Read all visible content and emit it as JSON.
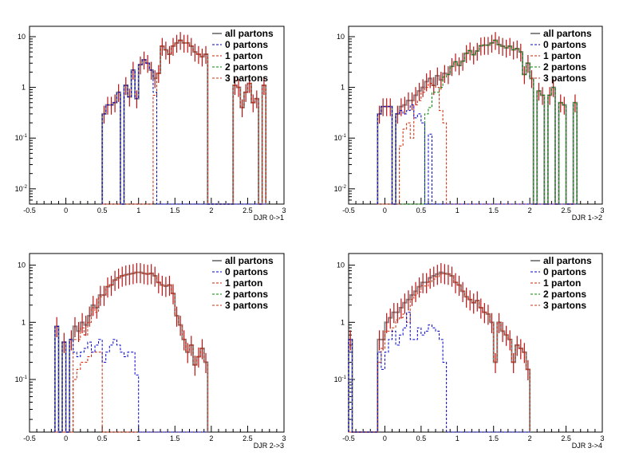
{
  "chart_data": [
    {
      "type": "histogram",
      "xlabel": "DJR 0->1",
      "ylabel": "",
      "xlim": [
        -0.5,
        3
      ],
      "ylim": [
        0.005,
        16
      ],
      "log_y": true,
      "x_ticks": [
        "-0.5",
        "0",
        "0.5",
        "1",
        "1.5",
        "2",
        "2.5",
        "3"
      ],
      "y_ticks": [
        {
          "v": 10,
          "b": "10",
          "e": ""
        },
        {
          "v": 1,
          "b": "1",
          "e": ""
        },
        {
          "v": 0.1,
          "b": "10",
          "e": "-1"
        },
        {
          "v": 0.01,
          "b": "10",
          "e": "-2"
        }
      ],
      "legend": [
        "all partons",
        "0 partons",
        "1 parton",
        "2 partons",
        "3 partons"
      ],
      "bins": {
        "start": 0.5,
        "width": 0.05
      },
      "series": [
        {
          "name": "all partons",
          "values": [
            0.3,
            0.45,
            0.45,
            0.5,
            0.8,
            0.005,
            1.1,
            0.65,
            2.2,
            0.6,
            2.8,
            3.5,
            3.0,
            2.2,
            1.5,
            1.9,
            6.5,
            5.5,
            4.5,
            6.5,
            7.5,
            8.5,
            7.5,
            7.5,
            6.5,
            5.0,
            4.5,
            4.0,
            4.5,
            0.005,
            0.005,
            0.005,
            0.005,
            0.005,
            0.005,
            0.005,
            1.1,
            1.0,
            0.4,
            0.8,
            1.2,
            0.5,
            0.6,
            0.005,
            1.1
          ]
        },
        {
          "name": "0 partons",
          "values": [
            0.3,
            0.45,
            0.45,
            0.5,
            0.8,
            0.005,
            1.1,
            0.65,
            2.2,
            0.6,
            2.8,
            3.5,
            3.0,
            2.2,
            0.8,
            0.005,
            0.005,
            0.005,
            0.005,
            0.005,
            0.005,
            0.005,
            0.005,
            0.005,
            0.005,
            0.005,
            0.005,
            0.005,
            0.005,
            0.005,
            0.005,
            0.005,
            0.005,
            0.005,
            0.005,
            0.005,
            0.005,
            0.005,
            0.005,
            0.005,
            0.005,
            0.005,
            0.005,
            0.005,
            0.005
          ]
        },
        {
          "name": "1 parton",
          "values": [
            0.005,
            0.005,
            0.005,
            0.005,
            0.005,
            0.005,
            0.005,
            0.005,
            0.005,
            0.005,
            0.005,
            0.005,
            0.005,
            0.005,
            0.7,
            1.9,
            6.5,
            5.5,
            4.5,
            6.5,
            7.5,
            8.5,
            7.5,
            7.5,
            6.5,
            5.0,
            4.5,
            4.0,
            4.5,
            0.005,
            0.005,
            0.005,
            0.005,
            0.005,
            0.005,
            0.005,
            1.1,
            1.0,
            0.4,
            0.8,
            1.2,
            0.5,
            0.6,
            0.005,
            1.1
          ]
        },
        {
          "name": "2 partons",
          "values": []
        },
        {
          "name": "3 partons",
          "values": []
        }
      ]
    },
    {
      "type": "histogram",
      "xlabel": "DJR 1->2",
      "ylabel": "",
      "xlim": [
        -0.5,
        3
      ],
      "ylim": [
        0.005,
        16
      ],
      "log_y": true,
      "x_ticks": [
        "-0.5",
        "0",
        "0.5",
        "1",
        "1.5",
        "2",
        "2.5",
        "3"
      ],
      "y_ticks": [
        {
          "v": 10,
          "b": "10",
          "e": ""
        },
        {
          "v": 1,
          "b": "1",
          "e": ""
        },
        {
          "v": 0.1,
          "b": "10",
          "e": "-1"
        },
        {
          "v": 0.01,
          "b": "10",
          "e": "-2"
        }
      ],
      "legend": [
        "all partons",
        "0 partons",
        "1 parton",
        "2 partons",
        "3 partons"
      ],
      "bins": {
        "start": -0.1,
        "width": 0.05
      },
      "series": [
        {
          "name": "all partons",
          "values": [
            0.3,
            0.42,
            0.42,
            0.42,
            0.005,
            0.3,
            0.42,
            0.45,
            0.55,
            0.55,
            0.7,
            0.85,
            1.0,
            1.3,
            1.5,
            1.1,
            1.7,
            1.4,
            1.9,
            1.8,
            2.6,
            3.2,
            2.7,
            3.3,
            4.7,
            5.3,
            4.4,
            5.2,
            6.6,
            6.8,
            6.8,
            7.5,
            8.5,
            7.0,
            6.5,
            6.0,
            6.5,
            5.5,
            5.8,
            5.0,
            1.8,
            3.0,
            1.5,
            0.005,
            0.85,
            0.7,
            0.005,
            0.7,
            1.0,
            0.005,
            0.5,
            0.45,
            0.005,
            0.005,
            0.5
          ]
        },
        {
          "name": "0 partons",
          "values": [
            0.3,
            0.42,
            0.42,
            0.42,
            0.005,
            0.3,
            0.35,
            0.3,
            0.35,
            0.45,
            0.25,
            0.3,
            0.2,
            0.005,
            0.12,
            0.005,
            0.005,
            0.005,
            0.005,
            0.005,
            0.005,
            0.005,
            0.005,
            0.005,
            0.005,
            0.005,
            0.005,
            0.005,
            0.005,
            0.005,
            0.005,
            0.005,
            0.005,
            0.005,
            0.005,
            0.005,
            0.005,
            0.005,
            0.005,
            0.005,
            0.005,
            0.005,
            0.005,
            0.005,
            0.005,
            0.005,
            0.005,
            0.005,
            0.005,
            0.005,
            0.005,
            0.005,
            0.005,
            0.005,
            0.005
          ]
        },
        {
          "name": "1 parton",
          "values": [
            0.005,
            0.005,
            0.005,
            0.005,
            0.005,
            0.005,
            0.07,
            0.15,
            0.2,
            0.1,
            0.45,
            0.55,
            0.8,
            1.0,
            1.2,
            1.1,
            1.0,
            0.35,
            0.2,
            0.005,
            0.005,
            0.005,
            0.005,
            0.005,
            0.005,
            0.005,
            0.005,
            0.005,
            0.005,
            0.005,
            0.005,
            0.005,
            0.005,
            0.005,
            0.005,
            0.005,
            0.005,
            0.005,
            0.005,
            0.005,
            0.005,
            0.005,
            0.005,
            0.005,
            0.005,
            0.005,
            0.005,
            0.005,
            0.005,
            0.005,
            0.005,
            0.005,
            0.005,
            0.005,
            0.005
          ]
        },
        {
          "name": "2 partons",
          "values": [
            0.005,
            0.005,
            0.005,
            0.005,
            0.005,
            0.005,
            0.005,
            0.005,
            0.005,
            0.005,
            0.005,
            0.005,
            0.005,
            0.3,
            0.4,
            0.8,
            0.8,
            1.0,
            1.6,
            1.8,
            2.6,
            3.2,
            2.7,
            3.3,
            4.7,
            5.3,
            4.4,
            5.2,
            6.6,
            6.8,
            6.8,
            7.5,
            8.5,
            7.0,
            6.5,
            6.0,
            6.5,
            5.5,
            5.8,
            5.0,
            1.8,
            3.0,
            1.5,
            0.005,
            0.85,
            0.7,
            0.005,
            0.7,
            1.0,
            0.005,
            0.5,
            0.45,
            0.005,
            0.005,
            0.5
          ]
        },
        {
          "name": "3 partons",
          "values": []
        }
      ]
    },
    {
      "type": "histogram",
      "xlabel": "DJR 2->3",
      "ylabel": "",
      "xlim": [
        -0.5,
        3
      ],
      "ylim": [
        0.012,
        16
      ],
      "log_y": true,
      "x_ticks": [
        "-0.5",
        "0",
        "0.5",
        "1",
        "1.5",
        "2",
        "2.5",
        "3"
      ],
      "y_ticks": [
        {
          "v": 10,
          "b": "10",
          "e": ""
        },
        {
          "v": 1,
          "b": "1",
          "e": ""
        },
        {
          "v": 0.1,
          "b": "10",
          "e": "-1"
        }
      ],
      "legend": [
        "all partons",
        "0 partons",
        "1 parton",
        "2 partons",
        "3 partons"
      ],
      "bins": {
        "start": -0.15,
        "width": 0.05
      },
      "series": [
        {
          "name": "all partons",
          "values": [
            0.85,
            0.012,
            0.45,
            0.012,
            0.5,
            0.85,
            0.7,
            1.0,
            0.9,
            1.3,
            2.0,
            1.8,
            3.0,
            3.0,
            4.2,
            4.5,
            5.5,
            6.0,
            6.5,
            6.8,
            7.0,
            7.2,
            7.5,
            7.5,
            7.2,
            7.0,
            7.2,
            6.5,
            5.0,
            4.5,
            4.3,
            4.5,
            3.2,
            1.3,
            0.9,
            0.5,
            0.3,
            0.4,
            0.18,
            0.25,
            0.35,
            0.2
          ]
        },
        {
          "name": "0 partons",
          "values": [
            0.85,
            0.012,
            0.45,
            0.012,
            0.5,
            0.3,
            0.25,
            0.3,
            0.35,
            0.45,
            0.3,
            0.4,
            0.5,
            0.2,
            0.3,
            0.4,
            0.5,
            0.4,
            0.3,
            0.25,
            0.3,
            0.3,
            0.12,
            0.012,
            0.012,
            0.012,
            0.012,
            0.012,
            0.012,
            0.012,
            0.012,
            0.012,
            0.012,
            0.012,
            0.012,
            0.012,
            0.012,
            0.012,
            0.012,
            0.012,
            0.012,
            0.012
          ]
        },
        {
          "name": "1 parton",
          "values": [
            0.012,
            0.012,
            0.012,
            0.012,
            0.012,
            0.1,
            0.15,
            0.2,
            0.2,
            0.25,
            0.3,
            0.3,
            0.3,
            0.012,
            0.012,
            0.012,
            0.012,
            0.012,
            0.012,
            0.012,
            0.012,
            0.012,
            0.012,
            0.012,
            0.012,
            0.012,
            0.012,
            0.012,
            0.012,
            0.012,
            0.012,
            0.012,
            0.012,
            0.012,
            0.012,
            0.012,
            0.012,
            0.012,
            0.012,
            0.012,
            0.012,
            0.012
          ]
        },
        {
          "name": "2 partons",
          "values": []
        },
        {
          "name": "3 partons",
          "values": [
            0.012,
            0.012,
            0.012,
            0.012,
            0.012,
            0.5,
            0.5,
            0.8,
            0.6,
            1.0,
            1.8,
            1.5,
            2.8,
            3.0,
            4.2,
            4.5,
            5.5,
            6.0,
            6.5,
            6.8,
            7.0,
            7.2,
            7.5,
            7.5,
            7.2,
            7.0,
            7.2,
            6.5,
            5.0,
            4.5,
            4.3,
            4.5,
            3.2,
            1.3,
            0.9,
            0.5,
            0.3,
            0.4,
            0.18,
            0.25,
            0.35,
            0.2
          ]
        }
      ]
    },
    {
      "type": "histogram",
      "xlabel": "DJR 3->4",
      "ylabel": "",
      "xlim": [
        -0.5,
        3
      ],
      "ylim": [
        0.012,
        16
      ],
      "log_y": true,
      "x_ticks": [
        "-0.5",
        "0",
        "0.5",
        "1",
        "1.5",
        "2",
        "2.5",
        "3"
      ],
      "y_ticks": [
        {
          "v": 10,
          "b": "10",
          "e": ""
        },
        {
          "v": 1,
          "b": "1",
          "e": ""
        },
        {
          "v": 0.1,
          "b": "10",
          "e": "-1"
        }
      ],
      "legend": [
        "all partons",
        "0 partons",
        "1 parton",
        "2 partons",
        "3 partons"
      ],
      "bins": {
        "start": -0.5,
        "width": 0.05
      },
      "series": [
        {
          "name": "all partons",
          "values": [
            0.5,
            0.012,
            0.012,
            0.012,
            0.012,
            0.012,
            0.012,
            0.012,
            0.5,
            0.5,
            1.0,
            1.2,
            1.5,
            1.5,
            1.8,
            2.2,
            2.5,
            3.0,
            3.5,
            4.2,
            5.0,
            5.0,
            6.0,
            6.5,
            7.0,
            7.5,
            7.2,
            7.0,
            6.5,
            5.0,
            4.5,
            3.5,
            2.8,
            2.5,
            2.2,
            2.4,
            1.8,
            1.5,
            1.4,
            1.0,
            0.2,
            1.0,
            0.7,
            0.6,
            0.5,
            0.2,
            0.4,
            0.35,
            0.3,
            0.15
          ]
        },
        {
          "name": "0 partons",
          "values": [
            0.5,
            0.012,
            0.012,
            0.012,
            0.012,
            0.012,
            0.012,
            0.012,
            0.3,
            0.15,
            0.3,
            0.5,
            0.7,
            0.4,
            0.6,
            0.8,
            1.5,
            0.5,
            0.5,
            0.8,
            0.6,
            0.7,
            0.9,
            0.8,
            0.7,
            0.5,
            0.2,
            0.012,
            0.012,
            0.012,
            0.012,
            0.012,
            0.012,
            0.012,
            0.012,
            0.012,
            0.012,
            0.012,
            0.012,
            0.012,
            0.012,
            0.012,
            0.012,
            0.012,
            0.012,
            0.012,
            0.012,
            0.012,
            0.012,
            0.012
          ]
        },
        {
          "name": "1 parton",
          "values": []
        },
        {
          "name": "2 partons",
          "values": []
        },
        {
          "name": "3 partons",
          "values": [
            0.012,
            0.012,
            0.012,
            0.012,
            0.012,
            0.012,
            0.012,
            0.012,
            0.2,
            0.35,
            0.7,
            0.7,
            0.8,
            1.1,
            1.2,
            1.4,
            1.0,
            2.5,
            3.0,
            3.4,
            4.4,
            4.3,
            5.1,
            5.7,
            6.3,
            7.0,
            7.0,
            7.0,
            6.5,
            5.0,
            4.5,
            3.5,
            2.8,
            2.5,
            2.2,
            2.4,
            1.8,
            1.5,
            1.4,
            1.0,
            0.2,
            1.0,
            0.7,
            0.6,
            0.5,
            0.2,
            0.4,
            0.35,
            0.3,
            0.15
          ]
        }
      ]
    }
  ],
  "colors": {
    "all partons": "#888888",
    "0 partons": "#0000cc",
    "1 parton": "#cc2200",
    "2 partons": "#008800",
    "3 partons": "#cc3311",
    "error_bars": "#bb1111",
    "axis": "#000000"
  }
}
